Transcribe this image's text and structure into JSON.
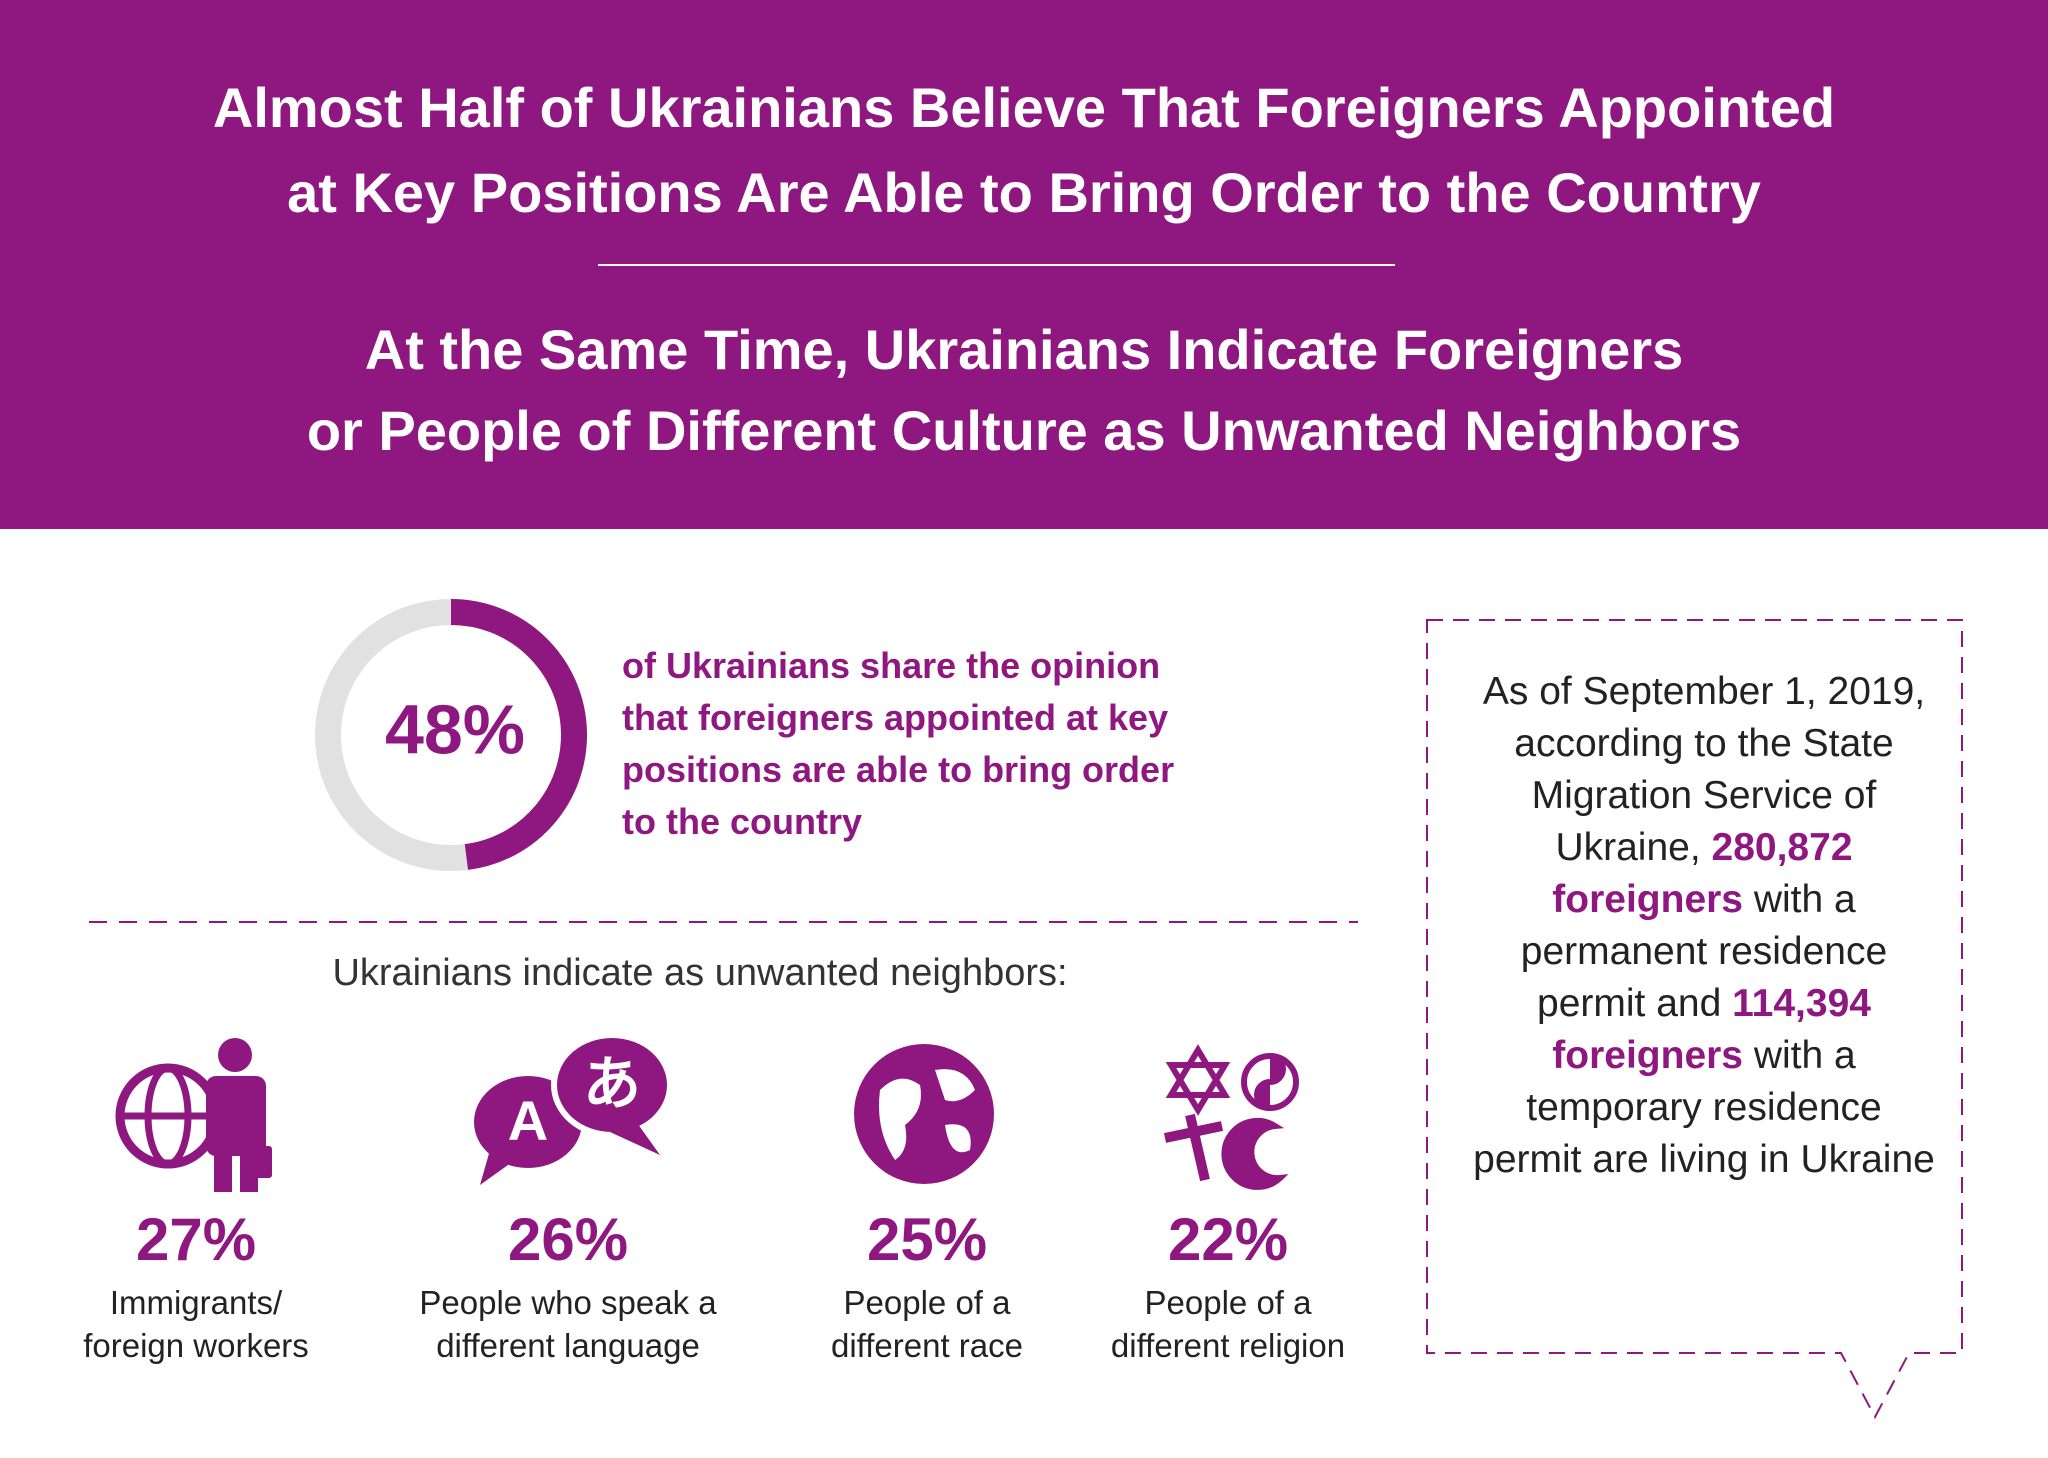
{
  "header": {
    "title": [
      "Almost Half of Ukrainians Believe That Foreigners Appointed",
      "at Key Positions Are Able to Bring Order to the Country"
    ],
    "subtitle": [
      "At the Same Time, Ukrainians Indicate Foreigners",
      "or People of Different Culture as Unwanted Neighbors"
    ]
  },
  "donut": {
    "value": 48,
    "label": "48%",
    "text": "of Ukrainians share the opinion that foreigners appointed at key positions are able to bring order to the country"
  },
  "neighbors": {
    "heading": "Ukrainians indicate as unwanted neighbors:",
    "items": [
      {
        "value": "27%",
        "label": [
          "Immigrants/",
          "foreign workers"
        ]
      },
      {
        "value": "26%",
        "label": [
          "People who speak a",
          "different language"
        ]
      },
      {
        "value": "25%",
        "label": [
          "People of a",
          "different race"
        ]
      },
      {
        "value": "22%",
        "label": [
          "People of a",
          "different religion"
        ]
      }
    ]
  },
  "box": {
    "parts": [
      "As of September 1, 2019, according to the State Migration Service of Ukraine, ",
      "280,872 foreigners",
      " with a permanent residence permit and ",
      "114,394 foreigners",
      " with a temporary residence permit are living in Ukraine"
    ]
  }
}
